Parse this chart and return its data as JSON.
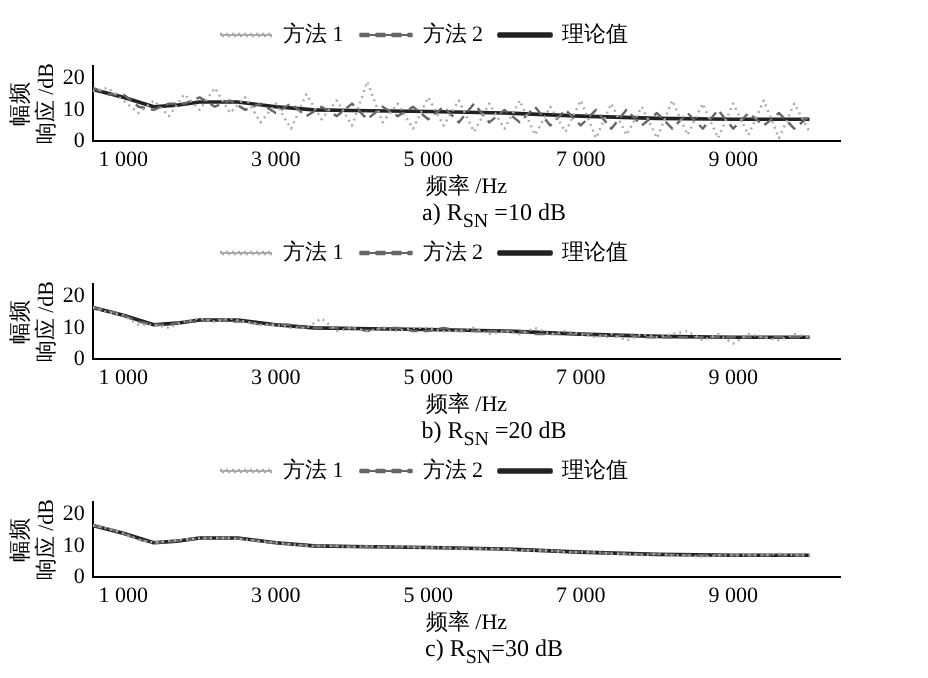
{
  "chart_data": [
    {
      "type": "line",
      "title": "a)   R$_{SN}$ =10 dB",
      "xlabel": "频率 /Hz",
      "ylabel": "幅频响应 /dB",
      "legend": "top",
      "marker": "none",
      "grid": false,
      "x": [
        600,
        800,
        1000,
        1200,
        1400,
        1600,
        1800,
        2000,
        2200,
        2400,
        2600,
        2800,
        3000,
        3200,
        3400,
        3600,
        3800,
        4000,
        4200,
        4400,
        4600,
        4800,
        5000,
        5200,
        5400,
        5600,
        5800,
        6000,
        6200,
        6400,
        6600,
        6800,
        7000,
        7200,
        7400,
        7600,
        7800,
        8000,
        8200,
        8400,
        8600,
        8800,
        9000,
        9200,
        9400,
        9600,
        9800,
        10000
      ],
      "xlim": [
        600,
        10400
      ],
      "xticks": [
        {
          "value": 1000,
          "label": "1 000"
        },
        {
          "value": 3000,
          "label": "3 000"
        },
        {
          "value": 5000,
          "label": "5 000"
        },
        {
          "value": 7000,
          "label": "7 000"
        },
        {
          "value": 9000,
          "label": "9 000"
        }
      ],
      "ylim": [
        0,
        24
      ],
      "yticks": [
        0,
        10,
        20
      ],
      "series": [
        {
          "name": "方法 1",
          "color": "#aaaaaa",
          "line_style": "dotted",
          "values": [
            16,
            17,
            13,
            9,
            13,
            8,
            15,
            10,
            17,
            9,
            14,
            6,
            12,
            4,
            15,
            7,
            13,
            5,
            19,
            6,
            12,
            4,
            14,
            5,
            13,
            3,
            12,
            4,
            13,
            2,
            11,
            3,
            13,
            1,
            12,
            2,
            11,
            1,
            13,
            2,
            12,
            1,
            12,
            2,
            13,
            1,
            12,
            3
          ]
        },
        {
          "name": "方法 2",
          "color": "#666666",
          "line_style": "dashed",
          "values": [
            17,
            15,
            15,
            11,
            10,
            12,
            12,
            14,
            11,
            13,
            10,
            12,
            9,
            12,
            8,
            11,
            8,
            12,
            7,
            11,
            8,
            11,
            7,
            11,
            6,
            12,
            6,
            10,
            6,
            11,
            5,
            10,
            5,
            10,
            4,
            10,
            5,
            9,
            4,
            9,
            4,
            10,
            4,
            9,
            5,
            9,
            4,
            8
          ]
        },
        {
          "name": "理论值",
          "color": "#222222",
          "line_style": "solid",
          "x": [
            600,
            1000,
            1400,
            1700,
            2000,
            2500,
            3000,
            3500,
            4000,
            5000,
            6000,
            7000,
            8000,
            9000,
            10000
          ],
          "values": [
            16.5,
            14,
            11,
            11.5,
            12.5,
            12.5,
            11,
            10,
            9.8,
            9.5,
            9,
            8,
            7.3,
            7,
            7
          ]
        }
      ]
    },
    {
      "type": "line",
      "title": "b)   R$_{SN}$ =20 dB",
      "xlabel": "频率 /Hz",
      "ylabel": "幅频响应 /dB",
      "legend": "top",
      "marker": "none",
      "grid": false,
      "x": [
        600,
        800,
        1000,
        1200,
        1400,
        1600,
        1800,
        2000,
        2200,
        2400,
        2600,
        2800,
        3000,
        3200,
        3400,
        3600,
        3800,
        4000,
        4200,
        4400,
        4600,
        4800,
        5000,
        5200,
        5400,
        5600,
        5800,
        6000,
        6200,
        6400,
        6600,
        6800,
        7000,
        7200,
        7400,
        7600,
        7800,
        8000,
        8200,
        8400,
        8600,
        8800,
        9000,
        9200,
        9400,
        9600,
        9800,
        10000
      ],
      "xlim": [
        600,
        10400
      ],
      "xticks": [
        {
          "value": 1000,
          "label": "1 000"
        },
        {
          "value": 3000,
          "label": "3 000"
        },
        {
          "value": 5000,
          "label": "5 000"
        },
        {
          "value": 7000,
          "label": "7 000"
        },
        {
          "value": 9000,
          "label": "9 000"
        }
      ],
      "ylim": [
        0,
        24
      ],
      "yticks": [
        0,
        10,
        20
      ],
      "series": [
        {
          "name": "方法 1",
          "color": "#aaaaaa",
          "line_style": "dotted",
          "values": [
            16.5,
            15,
            14,
            11,
            11,
            10,
            12,
            13,
            12,
            13,
            12,
            11,
            11,
            10,
            10,
            13,
            9,
            10,
            9,
            10,
            9,
            10,
            10,
            9,
            9,
            10,
            8,
            9,
            8,
            10,
            8,
            9,
            8,
            7,
            8,
            6,
            8,
            7,
            8,
            9,
            6,
            8,
            5,
            8,
            7,
            6,
            8,
            7
          ]
        },
        {
          "name": "方法 2",
          "color": "#666666",
          "line_style": "dashed",
          "values": [
            16.5,
            15.5,
            14,
            12,
            11,
            11,
            12,
            12,
            13,
            12,
            12,
            11,
            11,
            11,
            10,
            10,
            10,
            10,
            9,
            10,
            10,
            9,
            9,
            10,
            9,
            9,
            9,
            9,
            9,
            8,
            8,
            8,
            8,
            8,
            7,
            8,
            7,
            7,
            7,
            7,
            7,
            7,
            7,
            7,
            7,
            7,
            7,
            7
          ]
        },
        {
          "name": "理论值",
          "color": "#222222",
          "line_style": "solid",
          "x": [
            600,
            1000,
            1400,
            1700,
            2000,
            2500,
            3000,
            3500,
            4000,
            5000,
            6000,
            7000,
            8000,
            9000,
            10000
          ],
          "values": [
            16.5,
            14,
            11,
            11.5,
            12.5,
            12.5,
            11,
            10,
            9.8,
            9.5,
            9,
            8,
            7.3,
            7,
            7
          ]
        }
      ]
    },
    {
      "type": "line",
      "title": "c)   R$_{SN}$=30 dB",
      "xlabel": "频率 /Hz",
      "ylabel": "幅频响应 /dB",
      "legend": "top",
      "marker": "none",
      "grid": false,
      "x": [
        600,
        800,
        1000,
        1200,
        1400,
        1600,
        1800,
        2000,
        2200,
        2400,
        2600,
        2800,
        3000,
        3200,
        3400,
        3600,
        3800,
        4000,
        4200,
        4400,
        4600,
        4800,
        5000,
        5200,
        5400,
        5600,
        5800,
        6000,
        6200,
        6400,
        6600,
        6800,
        7000,
        7200,
        7400,
        7600,
        7800,
        8000,
        8200,
        8400,
        8600,
        8800,
        9000,
        9200,
        9400,
        9600,
        9800,
        10000
      ],
      "xlim": [
        600,
        10400
      ],
      "xticks": [
        {
          "value": 1000,
          "label": "1 000"
        },
        {
          "value": 3000,
          "label": "3 000"
        },
        {
          "value": 5000,
          "label": "5 000"
        },
        {
          "value": 7000,
          "label": "7 000"
        },
        {
          "value": 9000,
          "label": "9 000"
        }
      ],
      "ylim": [
        0,
        24
      ],
      "yticks": [
        0,
        10,
        20
      ],
      "series": [
        {
          "name": "方法 1",
          "color": "#aaaaaa",
          "line_style": "dotted",
          "values": [
            16.5,
            15.5,
            14,
            12,
            11,
            11.5,
            12,
            12.5,
            12.5,
            12.5,
            12,
            11.5,
            11,
            10.5,
            10,
            10,
            10,
            9.5,
            10,
            9.5,
            10,
            9.5,
            9.5,
            9.5,
            9,
            9,
            9,
            9,
            8.5,
            8.5,
            8.5,
            8,
            8,
            8,
            7.5,
            7.5,
            7,
            7.5,
            7,
            7,
            6.5,
            7,
            7,
            7,
            7,
            7.5,
            7,
            7
          ]
        },
        {
          "name": "方法 2",
          "color": "#666666",
          "line_style": "dashed",
          "values": [
            16.5,
            15.5,
            14,
            12,
            11,
            11.3,
            11.8,
            12.3,
            12.5,
            12.5,
            12.2,
            11.5,
            11,
            10.5,
            10.2,
            10,
            9.9,
            9.8,
            9.7,
            9.7,
            9.6,
            9.6,
            9.5,
            9.4,
            9.3,
            9.2,
            9.1,
            9,
            8.8,
            8.6,
            8.4,
            8.2,
            8,
            7.8,
            7.7,
            7.5,
            7.4,
            7.3,
            7.2,
            7.1,
            7,
            7,
            7,
            7,
            7,
            7,
            7,
            7
          ]
        },
        {
          "name": "理论值",
          "color": "#222222",
          "line_style": "solid",
          "x": [
            600,
            1000,
            1400,
            1700,
            2000,
            2500,
            3000,
            3500,
            4000,
            5000,
            6000,
            7000,
            8000,
            9000,
            10000
          ],
          "values": [
            16.5,
            14,
            11,
            11.5,
            12.5,
            12.5,
            11,
            10,
            9.8,
            9.5,
            9,
            8,
            7.3,
            7,
            7
          ]
        }
      ]
    }
  ]
}
